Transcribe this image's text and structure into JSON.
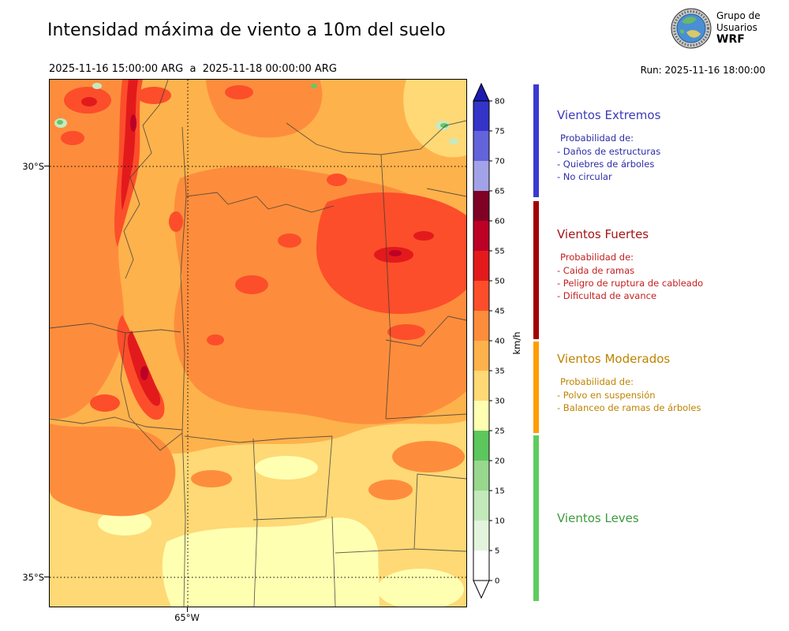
{
  "header": {
    "title": "Intensidad máxima de viento a 10m del suelo",
    "logo_text": [
      "Grupo de",
      "Usuarios",
      "WRF"
    ],
    "period": "2025-11-16 15:00:00 ARG  a  2025-11-18 00:00:00 ARG",
    "run_label": "Run: 2025-11-16 18:00:00"
  },
  "map_axes": {
    "lat_labels": [
      "30°S",
      "35°S"
    ],
    "lon_label": "65°W"
  },
  "colorbar": {
    "unit": "km/h",
    "ticks": [
      0,
      5,
      10,
      15,
      20,
      25,
      30,
      35,
      40,
      45,
      50,
      55,
      60,
      65,
      70,
      75,
      80
    ],
    "segments": [
      {
        "from": 0,
        "to": 5,
        "color": "#ffffff"
      },
      {
        "from": 5,
        "to": 10,
        "color": "#e3f4dd"
      },
      {
        "from": 10,
        "to": 15,
        "color": "#c3e9bb"
      },
      {
        "from": 15,
        "to": 20,
        "color": "#97d88e"
      },
      {
        "from": 20,
        "to": 25,
        "color": "#5cc75c"
      },
      {
        "from": 25,
        "to": 30,
        "color": "#ffffb2"
      },
      {
        "from": 30,
        "to": 35,
        "color": "#fed976"
      },
      {
        "from": 35,
        "to": 40,
        "color": "#feb24c"
      },
      {
        "from": 40,
        "to": 45,
        "color": "#fd8d3c"
      },
      {
        "from": 45,
        "to": 50,
        "color": "#fc4e2a"
      },
      {
        "from": 50,
        "to": 55,
        "color": "#e31a1c"
      },
      {
        "from": 55,
        "to": 60,
        "color": "#bd0026"
      },
      {
        "from": 60,
        "to": 65,
        "color": "#800026"
      },
      {
        "from": 65,
        "to": 70,
        "color": "#a2a2e8"
      },
      {
        "from": 70,
        "to": 75,
        "color": "#6363dc"
      },
      {
        "from": 75,
        "to": 80,
        "color": "#3434c8"
      }
    ],
    "over_color": "#1c1cae",
    "under_color": "#ffffff"
  },
  "legend": {
    "sections": [
      {
        "title": "Vientos Extremos",
        "bar_color": "#3a3ad0",
        "title_color": "#3a3ab8",
        "text_color": "#2d2da8",
        "header": "Probabilidad de:",
        "items": [
          "- Daños de estructuras",
          "- Quiebres de árboles",
          "- No circular"
        ]
      },
      {
        "title": "Vientos Fuertes",
        "bar_color": "#a30000",
        "title_color": "#a31515",
        "text_color": "#c42020",
        "header": "Probabilidad de:",
        "items": [
          "- Caida de ramas",
          "- Peligro de ruptura de cableado",
          "- Dificultad de avance"
        ]
      },
      {
        "title": "Vientos Moderados",
        "bar_color": "#ff9d00",
        "title_color": "#bf8300",
        "text_color": "#bf8300",
        "header": "Probabilidad de:",
        "items": [
          "- Polvo en suspensión",
          "- Balanceo de ramas de árboles"
        ]
      },
      {
        "title": "Vientos Leves",
        "bar_color": "#5ecc5e",
        "title_color": "#3c9b3c",
        "text_color": "#3c9b3c",
        "header": "",
        "items": []
      }
    ]
  },
  "palette": {
    "pale_green": "#c7e9c0",
    "green": "#67c667",
    "pale_yellow": "#ffffb2",
    "yellow": "#fed976",
    "orange": "#feb24c",
    "deep_orange": "#fd8d3c",
    "red_orange": "#fc4e2a",
    "red": "#e31a1c",
    "dark_red": "#bd0026"
  },
  "chart_data": {
    "type": "heatmap",
    "title": "Intensidad máxima de viento a 10m del suelo",
    "unit": "km/h",
    "colorbar_range": [
      0,
      80
    ],
    "colorbar_ticks": [
      0,
      5,
      10,
      15,
      20,
      25,
      30,
      35,
      40,
      45,
      50,
      55,
      60,
      65,
      70,
      75,
      80
    ],
    "lat_gridlines": [
      "30°S",
      "35°S"
    ],
    "lon_gridlines": [
      "65°W"
    ],
    "categories": [
      {
        "name": "Vientos Leves",
        "range_kmh": [
          0,
          25
        ],
        "color_family": "greens"
      },
      {
        "name": "Vientos Moderados",
        "range_kmh": [
          25,
          45
        ],
        "color_family": "yellow-orange"
      },
      {
        "name": "Vientos Fuertes",
        "range_kmh": [
          45,
          65
        ],
        "color_family": "reds"
      },
      {
        "name": "Vientos Extremos",
        "range_kmh": [
          65,
          80
        ],
        "color_family": "blues"
      }
    ]
  }
}
